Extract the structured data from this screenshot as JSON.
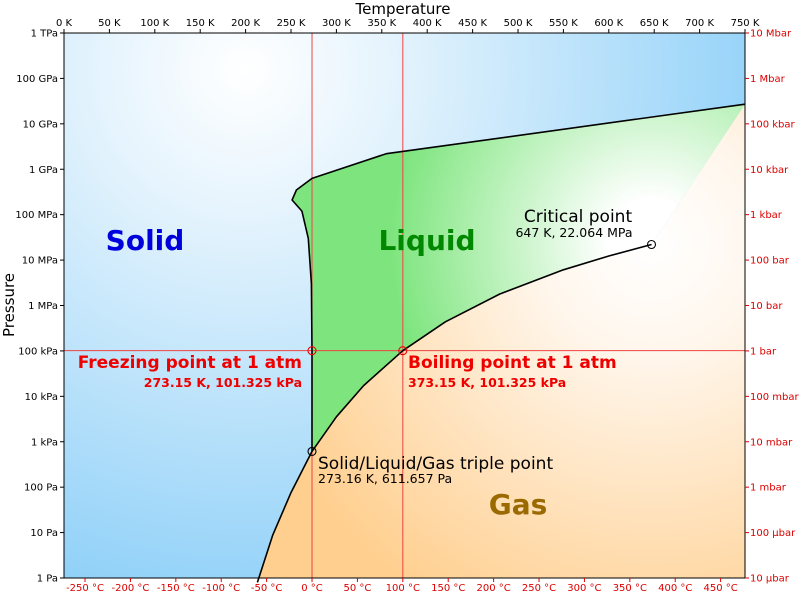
{
  "chart_data": {
    "type": "phase-diagram",
    "x_axis": {
      "label": "Temperature",
      "unit": "K",
      "range": [
        0,
        750
      ],
      "ticks": [
        {
          "value": 0,
          "label": "0 K"
        },
        {
          "value": 50,
          "label": "50 K"
        },
        {
          "value": 100,
          "label": "100 K"
        },
        {
          "value": 150,
          "label": "150 K"
        },
        {
          "value": 200,
          "label": "200 K"
        },
        {
          "value": 250,
          "label": "250 K"
        },
        {
          "value": 300,
          "label": "300 K"
        },
        {
          "value": 350,
          "label": "350 K"
        },
        {
          "value": 400,
          "label": "400 K"
        },
        {
          "value": 450,
          "label": "450 K"
        },
        {
          "value": 500,
          "label": "500 K"
        },
        {
          "value": 550,
          "label": "550 K"
        },
        {
          "value": 600,
          "label": "600 K"
        },
        {
          "value": 650,
          "label": "650 K"
        },
        {
          "value": 700,
          "label": "700 K"
        },
        {
          "value": 750,
          "label": "750 K"
        }
      ],
      "secondary_ticks": [
        {
          "value": 23.15,
          "label": "-250 °C"
        },
        {
          "value": 73.15,
          "label": "-200 °C"
        },
        {
          "value": 123.15,
          "label": "-150 °C"
        },
        {
          "value": 173.15,
          "label": "-100 °C"
        },
        {
          "value": 223.15,
          "label": "-50 °C"
        },
        {
          "value": 273.15,
          "label": "0 °C"
        },
        {
          "value": 323.15,
          "label": "50 °C"
        },
        {
          "value": 373.15,
          "label": "100 °C"
        },
        {
          "value": 423.15,
          "label": "150 °C"
        },
        {
          "value": 473.15,
          "label": "200 °C"
        },
        {
          "value": 523.15,
          "label": "250 °C"
        },
        {
          "value": 573.15,
          "label": "300 °C"
        },
        {
          "value": 623.15,
          "label": "350 °C"
        },
        {
          "value": 673.15,
          "label": "400 °C"
        },
        {
          "value": 723.15,
          "label": "450 °C"
        }
      ]
    },
    "y_axis": {
      "label": "Pressure",
      "unit": "Pa",
      "scale": "log",
      "range": [
        1,
        1000000000000.0
      ],
      "ticks": [
        {
          "value": 1000000000000.0,
          "label": "1 TPa"
        },
        {
          "value": 100000000000.0,
          "label": "100 GPa"
        },
        {
          "value": 10000000000.0,
          "label": "10 GPa"
        },
        {
          "value": 1000000000.0,
          "label": "1 GPa"
        },
        {
          "value": 100000000.0,
          "label": "100 MPa"
        },
        {
          "value": 10000000.0,
          "label": "10 MPa"
        },
        {
          "value": 1000000.0,
          "label": "1 MPa"
        },
        {
          "value": 100000.0,
          "label": "100 kPa"
        },
        {
          "value": 10000.0,
          "label": "10 kPa"
        },
        {
          "value": 1000.0,
          "label": "1 kPa"
        },
        {
          "value": 100.0,
          "label": "100 Pa"
        },
        {
          "value": 10.0,
          "label": "10 Pa"
        },
        {
          "value": 1,
          "label": "1 Pa"
        }
      ],
      "secondary_ticks": [
        {
          "value": 1000000000000.0,
          "label": "10 Mbar"
        },
        {
          "value": 100000000000.0,
          "label": "1 Mbar"
        },
        {
          "value": 10000000000.0,
          "label": "100 kbar"
        },
        {
          "value": 1000000000.0,
          "label": "10 kbar"
        },
        {
          "value": 100000000.0,
          "label": "1 kbar"
        },
        {
          "value": 10000000.0,
          "label": "100 bar"
        },
        {
          "value": 1000000.0,
          "label": "10 bar"
        },
        {
          "value": 100000.0,
          "label": "1 bar"
        },
        {
          "value": 10000.0,
          "label": "100 mbar"
        },
        {
          "value": 1000.0,
          "label": "10 mbar"
        },
        {
          "value": 100.0,
          "label": "1 mbar"
        },
        {
          "value": 10.0,
          "label": "100 µbar"
        },
        {
          "value": 1,
          "label": "10 µbar"
        }
      ]
    },
    "regions": [
      {
        "name": "Solid",
        "color": "#0000dd"
      },
      {
        "name": "Liquid",
        "color": "#008800"
      },
      {
        "name": "Gas",
        "color": "#9a6a00"
      }
    ],
    "curves": {
      "melting": [
        [
          273.16,
          611.657
        ],
        [
          273.15,
          101325
        ],
        [
          272.5,
          3000000.0
        ],
        [
          269,
          30000000.0
        ],
        [
          262,
          120000000.0
        ],
        [
          251.2,
          210000000.0
        ],
        [
          256,
          350000000.0
        ],
        [
          273.15,
          630000000.0
        ],
        [
          355,
          2200000000.0
        ],
        [
          750,
          27000000000.0
        ]
      ],
      "vaporization": [
        [
          273.16,
          611.657
        ],
        [
          300,
          3537
        ],
        [
          330,
          17210
        ],
        [
          373.15,
          101325
        ],
        [
          420,
          437000
        ],
        [
          480,
          1790000.0
        ],
        [
          550,
          6120000.0
        ],
        [
          600,
          12300000.0
        ],
        [
          647,
          22064000.0
        ]
      ],
      "sublimation": [
        [
          213,
          0.8
        ],
        [
          230,
          8.9
        ],
        [
          250,
          76
        ],
        [
          273.16,
          611.657
        ]
      ]
    },
    "points": [
      {
        "name": "triple",
        "T": 273.16,
        "P": 611.657,
        "label": "Solid/Liquid/Gas triple point",
        "sublabel": "273.16 K, 611.657 Pa",
        "color": "#000000"
      },
      {
        "name": "critical",
        "T": 647,
        "P": 22064000,
        "label": "Critical point",
        "sublabel": "647 K, 22.064 MPa",
        "color": "#000000"
      },
      {
        "name": "freezing",
        "T": 273.15,
        "P": 101325,
        "label": "Freezing point at 1 atm",
        "sublabel": "273.15 K, 101.325 kPa",
        "color": "#ee0000"
      },
      {
        "name": "boiling",
        "T": 373.15,
        "P": 101325,
        "label": "Boiling point at 1 atm",
        "sublabel": "373.15 K, 101.325 kPa",
        "color": "#ee0000"
      }
    ],
    "reference_lines": [
      {
        "orientation": "vertical",
        "value": 273.15,
        "color": "#ee4444"
      },
      {
        "orientation": "vertical",
        "value": 373.15,
        "color": "#ee4444"
      },
      {
        "orientation": "horizontal",
        "value": 101325,
        "color": "#ee4444"
      }
    ],
    "colors": {
      "solid_fill": "#8ccff8",
      "liquid_fill": "#7ee57e",
      "gas_fill": "#ffcf8f",
      "secondary_axis": "#dd0000"
    }
  }
}
